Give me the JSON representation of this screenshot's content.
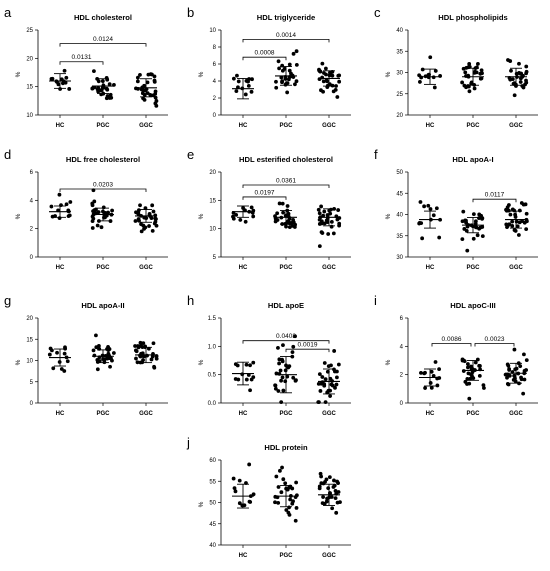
{
  "chart_data": [
    {
      "letter": "a",
      "title": "HDL cholesterol",
      "type": "scatter",
      "ylabel": "%",
      "categories": [
        "HC",
        "PGC",
        "GGC"
      ],
      "ylim": [
        10,
        25
      ],
      "yticks": [
        10,
        15,
        20,
        25
      ],
      "groups": [
        {
          "mean": 16.0,
          "sd": 1.3,
          "n": 13
        },
        {
          "mean": 15.1,
          "sd": 1.3,
          "n": 30
        },
        {
          "mean": 14.8,
          "sd": 1.6,
          "n": 32
        }
      ],
      "comparisons": [
        {
          "from": 0,
          "to": 1,
          "label": "0.0131",
          "y": 19.4
        },
        {
          "from": 0,
          "to": 2,
          "label": "0.0124",
          "y": 22.6
        }
      ]
    },
    {
      "letter": "b",
      "title": "HDL triglyceride",
      "type": "scatter",
      "ylabel": "%",
      "categories": [
        "HC",
        "PGC",
        "GGC"
      ],
      "ylim": [
        0,
        10
      ],
      "yticks": [
        0,
        2,
        4,
        6,
        8,
        10
      ],
      "groups": [
        {
          "mean": 3.1,
          "sd": 1.2,
          "n": 13
        },
        {
          "mean": 4.6,
          "sd": 1.1,
          "n": 30
        },
        {
          "mean": 4.3,
          "sd": 0.9,
          "n": 32
        }
      ],
      "comparisons": [
        {
          "from": 0,
          "to": 1,
          "label": "0.0008",
          "y": 6.8
        },
        {
          "from": 0,
          "to": 2,
          "label": "0.0014",
          "y": 8.9
        }
      ]
    },
    {
      "letter": "c",
      "title": "HDL phospholipids",
      "type": "scatter",
      "ylabel": "%",
      "categories": [
        "HC",
        "PGC",
        "GGC"
      ],
      "ylim": [
        20,
        40
      ],
      "yticks": [
        20,
        25,
        30,
        35,
        40
      ],
      "groups": [
        {
          "mean": 29.0,
          "sd": 1.8,
          "n": 13
        },
        {
          "mean": 29.0,
          "sd": 2.0,
          "n": 30
        },
        {
          "mean": 29.0,
          "sd": 2.0,
          "n": 32
        }
      ],
      "comparisons": []
    },
    {
      "letter": "d",
      "title": "HDL free cholesterol",
      "type": "scatter",
      "ylabel": "%",
      "categories": [
        "HC",
        "PGC",
        "GGC"
      ],
      "ylim": [
        0,
        6
      ],
      "yticks": [
        0,
        2,
        4,
        6
      ],
      "groups": [
        {
          "mean": 3.2,
          "sd": 0.4,
          "n": 13
        },
        {
          "mean": 3.0,
          "sd": 0.45,
          "n": 30
        },
        {
          "mean": 2.9,
          "sd": 0.45,
          "n": 32
        }
      ],
      "comparisons": [
        {
          "from": 0,
          "to": 2,
          "label": "0.0203",
          "y": 4.8
        }
      ]
    },
    {
      "letter": "e",
      "title": "HDL esterified cholesterol",
      "type": "scatter",
      "ylabel": "%",
      "categories": [
        "HC",
        "PGC",
        "GGC"
      ],
      "ylim": [
        5,
        20
      ],
      "yticks": [
        5,
        10,
        15,
        20
      ],
      "groups": [
        {
          "mean": 13.0,
          "sd": 1.0,
          "n": 13
        },
        {
          "mean": 12.0,
          "sd": 1.2,
          "n": 30
        },
        {
          "mean": 12.0,
          "sd": 1.5,
          "n": 32
        }
      ],
      "comparisons": [
        {
          "from": 0,
          "to": 1,
          "label": "0.0197",
          "y": 15.6
        },
        {
          "from": 0,
          "to": 2,
          "label": "0.0361",
          "y": 17.7
        }
      ]
    },
    {
      "letter": "f",
      "title": "HDL apoA-I",
      "type": "scatter",
      "ylabel": "%",
      "categories": [
        "HC",
        "PGC",
        "GGC"
      ],
      "ylim": [
        30,
        50
      ],
      "yticks": [
        30,
        35,
        40,
        45,
        50
      ],
      "groups": [
        {
          "mean": 38.8,
          "sd": 2.0,
          "n": 13
        },
        {
          "mean": 37.5,
          "sd": 1.8,
          "n": 30
        },
        {
          "mean": 38.8,
          "sd": 2.0,
          "n": 32
        }
      ],
      "comparisons": [
        {
          "from": 1,
          "to": 2,
          "label": "0.0117",
          "y": 43.6
        }
      ]
    },
    {
      "letter": "g",
      "title": "HDL apoA-II",
      "type": "scatter",
      "ylabel": "%",
      "categories": [
        "HC",
        "PGC",
        "GGC"
      ],
      "ylim": [
        0,
        20
      ],
      "yticks": [
        0,
        5,
        10,
        15,
        20
      ],
      "groups": [
        {
          "mean": 10.7,
          "sd": 2.0,
          "n": 13
        },
        {
          "mean": 11.0,
          "sd": 1.5,
          "n": 30
        },
        {
          "mean": 11.3,
          "sd": 1.8,
          "n": 32
        }
      ],
      "comparisons": []
    },
    {
      "letter": "h",
      "title": "HDL apoE",
      "type": "scatter",
      "ylabel": "%",
      "categories": [
        "HC",
        "PGC",
        "GGC"
      ],
      "ylim": [
        0,
        1.5
      ],
      "yticks": [
        0.0,
        0.5,
        1.0,
        1.5
      ],
      "groups": [
        {
          "mean": 0.52,
          "sd": 0.2,
          "n": 13
        },
        {
          "mean": 0.5,
          "sd": 0.32,
          "n": 30
        },
        {
          "mean": 0.38,
          "sd": 0.22,
          "n": 32
        }
      ],
      "comparisons": [
        {
          "from": 1,
          "to": 2,
          "label": "0.0019",
          "y": 0.95
        },
        {
          "from": 0,
          "to": 2,
          "label": "0.0408",
          "y": 1.1
        }
      ]
    },
    {
      "letter": "i",
      "title": "HDL apoC-III",
      "type": "scatter",
      "ylabel": "%",
      "categories": [
        "HC",
        "PGC",
        "GGC"
      ],
      "ylim": [
        0,
        6
      ],
      "yticks": [
        0,
        2,
        4,
        6
      ],
      "groups": [
        {
          "mean": 1.8,
          "sd": 0.6,
          "n": 13
        },
        {
          "mean": 2.3,
          "sd": 0.7,
          "n": 30
        },
        {
          "mean": 2.1,
          "sd": 0.7,
          "n": 32
        }
      ],
      "comparisons": [
        {
          "from": 0,
          "to": 1,
          "label": "0.0086",
          "y": 4.2
        },
        {
          "from": 1,
          "to": 2,
          "label": "0.0023",
          "y": 4.2
        }
      ]
    },
    {
      "letter": "j",
      "title": "HDL protein",
      "type": "scatter",
      "ylabel": "%",
      "categories": [
        "HC",
        "PGC",
        "GGC"
      ],
      "ylim": [
        40,
        60
      ],
      "yticks": [
        40,
        45,
        50,
        55,
        60
      ],
      "groups": [
        {
          "mean": 51.5,
          "sd": 2.8,
          "n": 13
        },
        {
          "mean": 51.5,
          "sd": 2.5,
          "n": 30
        },
        {
          "mean": 51.8,
          "sd": 2.5,
          "n": 32
        }
      ],
      "comparisons": []
    }
  ]
}
